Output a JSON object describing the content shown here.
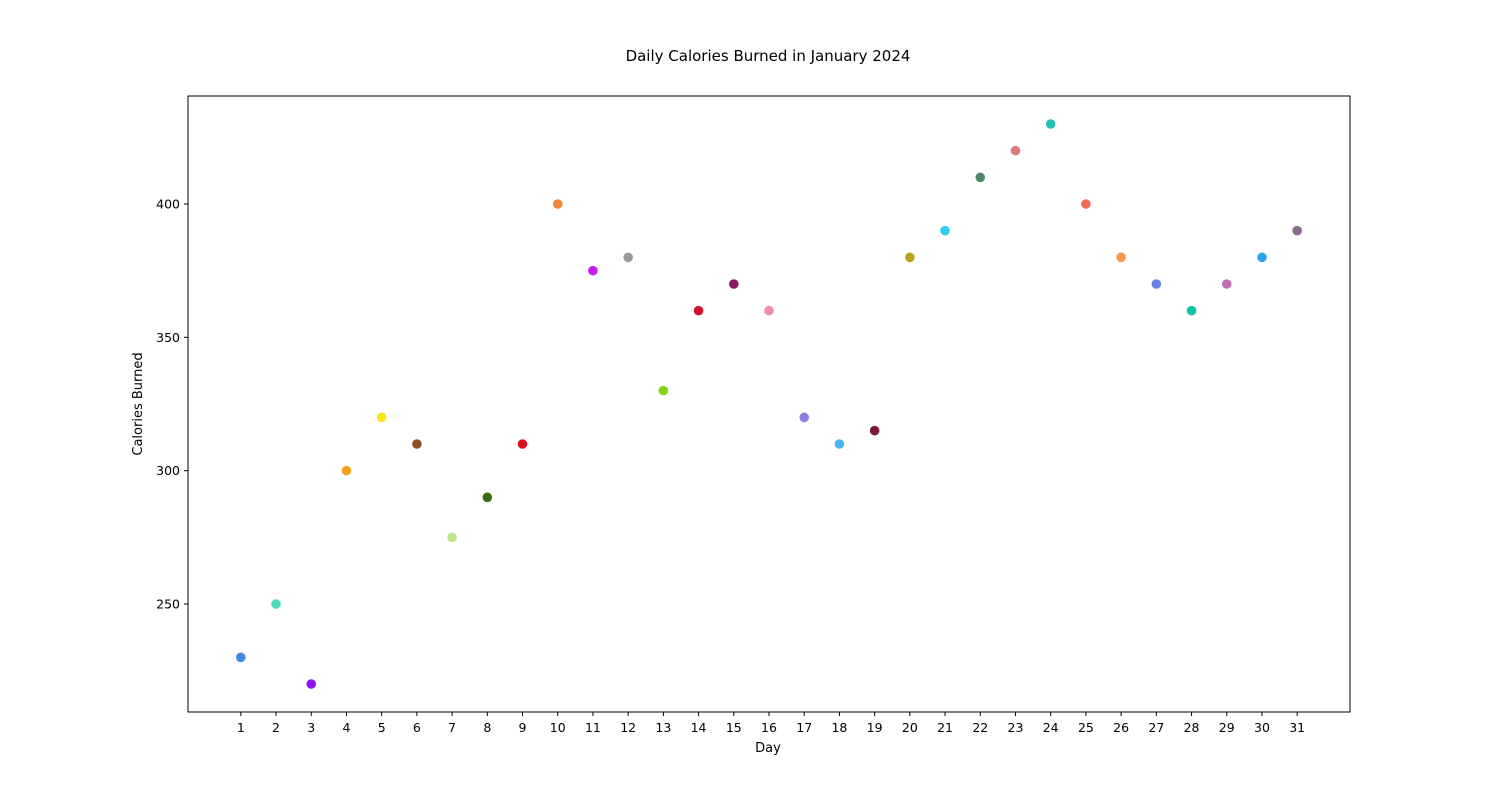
{
  "chart_data": {
    "type": "scatter",
    "title": "Daily Calories Burned in January 2024",
    "xlabel": "Day",
    "ylabel": "Calories Burned",
    "x": [
      1,
      2,
      3,
      4,
      5,
      6,
      7,
      8,
      9,
      10,
      11,
      12,
      13,
      14,
      15,
      16,
      17,
      18,
      19,
      20,
      21,
      22,
      23,
      24,
      25,
      26,
      27,
      28,
      29,
      30,
      31
    ],
    "y": [
      230,
      250,
      220,
      300,
      320,
      310,
      275,
      290,
      310,
      400,
      375,
      380,
      330,
      360,
      370,
      360,
      320,
      310,
      315,
      380,
      390,
      410,
      420,
      430,
      400,
      380,
      370,
      360,
      370,
      380,
      390
    ],
    "colors": [
      "#3f8ae8",
      "#4edbc0",
      "#8e14f0",
      "#f0a01e",
      "#f7e514",
      "#8a5226",
      "#bde68c",
      "#3a6b0c",
      "#d6101e",
      "#f0883a",
      "#c81cf0",
      "#9a9a9a",
      "#84d41e",
      "#d0102c",
      "#8e1a5a",
      "#f08cac",
      "#8a80e0",
      "#4cb6f0",
      "#7a1a3a",
      "#baa21e",
      "#2ccdf0",
      "#4a8a6a",
      "#e07a7a",
      "#2abfb4",
      "#f06a5a",
      "#f7984c",
      "#6a80e8",
      "#12c4a8",
      "#c070b4",
      "#2aa6f0",
      "#8a6a8a"
    ],
    "xticks": [
      "1",
      "2",
      "3",
      "4",
      "5",
      "6",
      "7",
      "8",
      "9",
      "10",
      "11",
      "12",
      "13",
      "14",
      "15",
      "16",
      "17",
      "18",
      "19",
      "20",
      "21",
      "22",
      "23",
      "24",
      "25",
      "26",
      "27",
      "28",
      "29",
      "30",
      "31"
    ],
    "yticks": [
      250,
      300,
      350,
      400
    ],
    "xlim": [
      -0.5,
      32.5
    ],
    "ylim": [
      209.5,
      440.5
    ],
    "grid": false,
    "legend": false
  }
}
